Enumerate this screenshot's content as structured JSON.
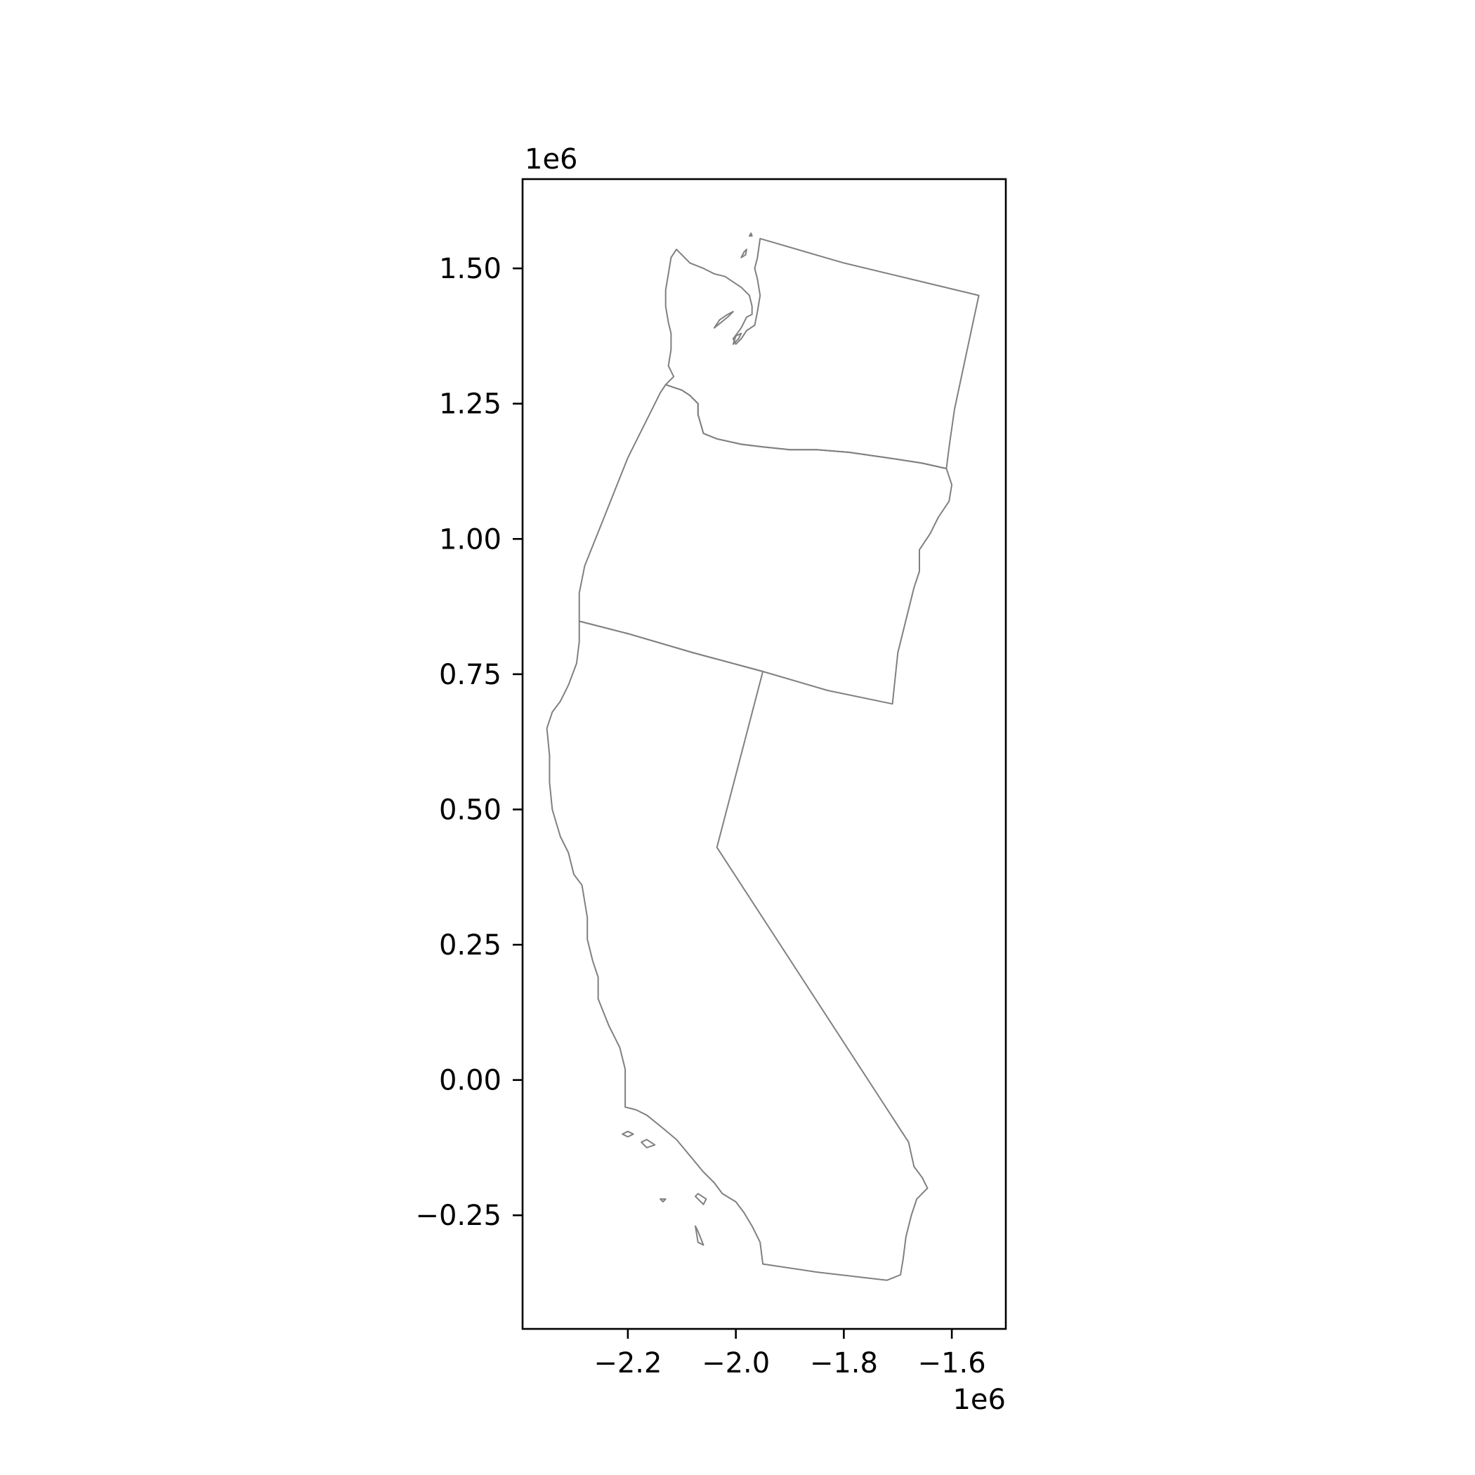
{
  "chart_data": {
    "type": "map",
    "projection_note": "",
    "x_offset_label": "1e6",
    "y_offset_label": "1e6",
    "xlim": [
      -2.395,
      -1.5
    ],
    "ylim": [
      -0.46,
      1.665
    ],
    "x_ticks": [
      {
        "value": -2.2,
        "label": "−2.2"
      },
      {
        "value": -2.0,
        "label": "−2.0"
      },
      {
        "value": -1.8,
        "label": "−1.8"
      },
      {
        "value": -1.6,
        "label": "−1.6"
      }
    ],
    "y_ticks": [
      {
        "value": 1.5,
        "label": "1.50"
      },
      {
        "value": 1.25,
        "label": "1.25"
      },
      {
        "value": 1.0,
        "label": "1.00"
      },
      {
        "value": 0.75,
        "label": "0.75"
      },
      {
        "value": 0.5,
        "label": "0.50"
      },
      {
        "value": 0.25,
        "label": "0.25"
      },
      {
        "value": 0.0,
        "label": "0.00"
      },
      {
        "value": -0.25,
        "label": "−0.25"
      }
    ],
    "outline_color": "#808080",
    "fill_color": "#ffffff",
    "grid": false,
    "regions": [
      {
        "id": "washington",
        "rings": [
          [
            [
              -2.11,
              1.535
            ],
            [
              -2.1,
              1.525
            ],
            [
              -2.085,
              1.51
            ],
            [
              -2.06,
              1.5
            ],
            [
              -2.04,
              1.49
            ],
            [
              -2.02,
              1.485
            ],
            [
              -2.005,
              1.475
            ],
            [
              -1.99,
              1.465
            ],
            [
              -1.975,
              1.45
            ],
            [
              -1.97,
              1.43
            ],
            [
              -1.97,
              1.415
            ],
            [
              -1.98,
              1.41
            ],
            [
              -1.99,
              1.39
            ],
            [
              -2.005,
              1.37
            ],
            [
              -2.0,
              1.36
            ],
            [
              -1.99,
              1.37
            ],
            [
              -1.98,
              1.385
            ],
            [
              -1.965,
              1.395
            ],
            [
              -1.96,
              1.42
            ],
            [
              -1.955,
              1.45
            ],
            [
              -1.96,
              1.48
            ],
            [
              -1.965,
              1.5
            ],
            [
              -1.96,
              1.52
            ],
            [
              -1.955,
              1.555
            ],
            [
              -1.8,
              1.51
            ],
            [
              -1.675,
              1.48
            ],
            [
              -1.55,
              1.45
            ],
            [
              -1.565,
              1.38
            ],
            [
              -1.58,
              1.31
            ],
            [
              -1.595,
              1.24
            ],
            [
              -1.605,
              1.17
            ],
            [
              -1.61,
              1.13
            ],
            [
              -1.655,
              1.14
            ],
            [
              -1.72,
              1.15
            ],
            [
              -1.79,
              1.16
            ],
            [
              -1.85,
              1.165
            ],
            [
              -1.9,
              1.165
            ],
            [
              -1.95,
              1.17
            ],
            [
              -1.99,
              1.175
            ],
            [
              -2.035,
              1.185
            ],
            [
              -2.06,
              1.195
            ],
            [
              -2.07,
              1.23
            ],
            [
              -2.07,
              1.25
            ],
            [
              -2.085,
              1.265
            ],
            [
              -2.1,
              1.275
            ],
            [
              -2.115,
              1.28
            ],
            [
              -2.13,
              1.285
            ],
            [
              -2.115,
              1.3
            ],
            [
              -2.125,
              1.32
            ],
            [
              -2.12,
              1.35
            ],
            [
              -2.12,
              1.38
            ],
            [
              -2.125,
              1.4
            ],
            [
              -2.13,
              1.43
            ],
            [
              -2.13,
              1.46
            ],
            [
              -2.125,
              1.49
            ],
            [
              -2.12,
              1.52
            ],
            [
              -2.11,
              1.535
            ]
          ]
        ]
      },
      {
        "id": "washington-islands",
        "rings": [
          [
            [
              -2.04,
              1.39
            ],
            [
              -2.03,
              1.405
            ],
            [
              -2.015,
              1.415
            ],
            [
              -2.005,
              1.42
            ],
            [
              -2.015,
              1.41
            ],
            [
              -2.03,
              1.398
            ],
            [
              -2.04,
              1.39
            ]
          ],
          [
            [
              -2.005,
              1.36
            ],
            [
              -1.995,
              1.37
            ],
            [
              -1.99,
              1.38
            ],
            [
              -2.0,
              1.375
            ],
            [
              -2.005,
              1.36
            ]
          ],
          [
            [
              -1.99,
              1.52
            ],
            [
              -1.985,
              1.53
            ],
            [
              -1.98,
              1.535
            ],
            [
              -1.982,
              1.525
            ],
            [
              -1.99,
              1.52
            ]
          ],
          [
            [
              -1.975,
              1.56
            ],
            [
              -1.972,
              1.565
            ],
            [
              -1.97,
              1.56
            ],
            [
              -1.975,
              1.56
            ]
          ]
        ]
      },
      {
        "id": "oregon",
        "rings": [
          [
            [
              -2.13,
              1.285
            ],
            [
              -2.115,
              1.28
            ],
            [
              -2.1,
              1.275
            ],
            [
              -2.085,
              1.265
            ],
            [
              -2.07,
              1.25
            ],
            [
              -2.07,
              1.23
            ],
            [
              -2.06,
              1.195
            ],
            [
              -2.035,
              1.185
            ],
            [
              -1.99,
              1.175
            ],
            [
              -1.95,
              1.17
            ],
            [
              -1.9,
              1.165
            ],
            [
              -1.85,
              1.165
            ],
            [
              -1.79,
              1.16
            ],
            [
              -1.72,
              1.15
            ],
            [
              -1.655,
              1.14
            ],
            [
              -1.61,
              1.13
            ],
            [
              -1.6,
              1.1
            ],
            [
              -1.605,
              1.07
            ],
            [
              -1.625,
              1.04
            ],
            [
              -1.64,
              1.01
            ],
            [
              -1.66,
              0.98
            ],
            [
              -1.66,
              0.94
            ],
            [
              -1.67,
              0.91
            ],
            [
              -1.685,
              0.85
            ],
            [
              -1.7,
              0.79
            ],
            [
              -1.71,
              0.695
            ],
            [
              -1.83,
              0.72
            ],
            [
              -1.95,
              0.755
            ],
            [
              -2.08,
              0.79
            ],
            [
              -2.2,
              0.825
            ],
            [
              -2.29,
              0.848
            ],
            [
              -2.29,
              0.9
            ],
            [
              -2.28,
              0.95
            ],
            [
              -2.26,
              1.0
            ],
            [
              -2.24,
              1.05
            ],
            [
              -2.22,
              1.1
            ],
            [
              -2.2,
              1.15
            ],
            [
              -2.175,
              1.2
            ],
            [
              -2.155,
              1.24
            ],
            [
              -2.14,
              1.27
            ],
            [
              -2.13,
              1.285
            ]
          ]
        ]
      },
      {
        "id": "california",
        "rings": [
          [
            [
              -2.29,
              0.848
            ],
            [
              -2.2,
              0.825
            ],
            [
              -2.08,
              0.79
            ],
            [
              -1.95,
              0.755
            ],
            [
              -2.035,
              0.43
            ],
            [
              -1.68,
              -0.115
            ],
            [
              -1.67,
              -0.16
            ],
            [
              -1.655,
              -0.18
            ],
            [
              -1.645,
              -0.2
            ],
            [
              -1.665,
              -0.22
            ],
            [
              -1.675,
              -0.25
            ],
            [
              -1.685,
              -0.29
            ],
            [
              -1.69,
              -0.33
            ],
            [
              -1.695,
              -0.36
            ],
            [
              -1.72,
              -0.37
            ],
            [
              -1.85,
              -0.355
            ],
            [
              -1.95,
              -0.34
            ],
            [
              -1.955,
              -0.3
            ],
            [
              -1.97,
              -0.27
            ],
            [
              -1.985,
              -0.245
            ],
            [
              -2.0,
              -0.225
            ],
            [
              -2.025,
              -0.21
            ],
            [
              -2.04,
              -0.19
            ],
            [
              -2.06,
              -0.17
            ],
            [
              -2.085,
              -0.14
            ],
            [
              -2.11,
              -0.11
            ],
            [
              -2.14,
              -0.085
            ],
            [
              -2.165,
              -0.065
            ],
            [
              -2.185,
              -0.055
            ],
            [
              -2.205,
              -0.05
            ],
            [
              -2.205,
              -0.02
            ],
            [
              -2.205,
              0.02
            ],
            [
              -2.215,
              0.06
            ],
            [
              -2.235,
              0.1
            ],
            [
              -2.255,
              0.15
            ],
            [
              -2.255,
              0.19
            ],
            [
              -2.265,
              0.22
            ],
            [
              -2.275,
              0.26
            ],
            [
              -2.275,
              0.3
            ],
            [
              -2.28,
              0.33
            ],
            [
              -2.285,
              0.36
            ],
            [
              -2.3,
              0.38
            ],
            [
              -2.31,
              0.42
            ],
            [
              -2.325,
              0.45
            ],
            [
              -2.34,
              0.5
            ],
            [
              -2.345,
              0.55
            ],
            [
              -2.345,
              0.6
            ],
            [
              -2.35,
              0.65
            ],
            [
              -2.34,
              0.68
            ],
            [
              -2.325,
              0.7
            ],
            [
              -2.31,
              0.73
            ],
            [
              -2.295,
              0.77
            ],
            [
              -2.29,
              0.81
            ],
            [
              -2.29,
              0.848
            ]
          ]
        ]
      },
      {
        "id": "channel-islands",
        "rings": [
          [
            [
              -2.21,
              -0.1
            ],
            [
              -2.2,
              -0.105
            ],
            [
              -2.19,
              -0.1
            ],
            [
              -2.2,
              -0.095
            ],
            [
              -2.21,
              -0.1
            ]
          ],
          [
            [
              -2.175,
              -0.115
            ],
            [
              -2.165,
              -0.125
            ],
            [
              -2.15,
              -0.12
            ],
            [
              -2.165,
              -0.11
            ],
            [
              -2.175,
              -0.115
            ]
          ],
          [
            [
              -2.14,
              -0.22
            ],
            [
              -2.135,
              -0.225
            ],
            [
              -2.13,
              -0.22
            ],
            [
              -2.14,
              -0.22
            ]
          ],
          [
            [
              -2.075,
              -0.215
            ],
            [
              -2.06,
              -0.23
            ],
            [
              -2.055,
              -0.22
            ],
            [
              -2.07,
              -0.21
            ],
            [
              -2.075,
              -0.215
            ]
          ],
          [
            [
              -2.075,
              -0.27
            ],
            [
              -2.07,
              -0.3
            ],
            [
              -2.06,
              -0.305
            ],
            [
              -2.07,
              -0.28
            ],
            [
              -2.075,
              -0.27
            ]
          ]
        ]
      }
    ]
  }
}
